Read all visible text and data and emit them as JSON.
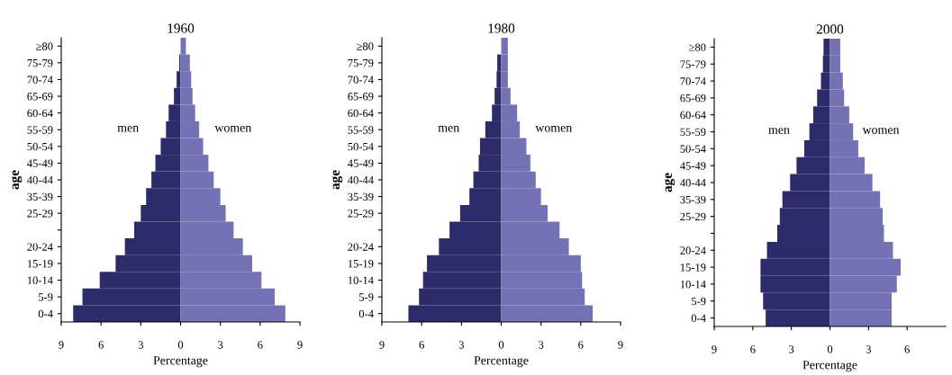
{
  "chart_data": [
    {
      "type": "bar",
      "orientation": "horizontal",
      "stacked": true,
      "title": "1960",
      "xlabel": "Percentage",
      "ylabel": "age",
      "categories": [
        "≥80",
        "75-79",
        "70-74",
        "65-69",
        "60-64",
        "55-59",
        "50-54",
        "45-49",
        "40-44",
        "35-39",
        "25-29",
        null,
        "20-24",
        "15-19",
        "10-14",
        "5-9",
        "0-4"
      ],
      "series": [
        {
          "name": "men",
          "color": "#2e2b6b",
          "values": [
            0.0,
            -0.1,
            -0.3,
            -0.5,
            -0.9,
            -1.1,
            -1.5,
            -1.9,
            -2.2,
            -2.6,
            -3.0,
            -3.5,
            -4.2,
            -4.9,
            -6.1,
            -7.4,
            -8.1
          ]
        },
        {
          "name": "women",
          "color": "#7472b4",
          "values": [
            0.4,
            0.7,
            0.8,
            0.9,
            1.1,
            1.4,
            1.7,
            2.1,
            2.5,
            3.0,
            3.4,
            4.0,
            4.7,
            5.4,
            6.1,
            7.1,
            7.9
          ]
        }
      ],
      "xlim": [
        -9,
        9
      ],
      "xticks": [
        {
          "value": -9,
          "label": "9"
        },
        {
          "value": -6,
          "label": "6"
        },
        {
          "value": -3,
          "label": "3"
        },
        0,
        3,
        6,
        9
      ]
    },
    {
      "type": "bar",
      "orientation": "horizontal",
      "stacked": true,
      "title": "1980",
      "xlabel": "Percentage",
      "ylabel": "age",
      "categories": [
        "≥80",
        "75-79",
        "70-74",
        "65-69",
        "60-64",
        "55-59",
        "50-54",
        "45-49",
        "40-44",
        "35-39",
        "25-29",
        null,
        "20-24",
        "15-19",
        "10-14",
        "5-9",
        "0-4"
      ],
      "series": [
        {
          "name": "men",
          "color": "#2e2b6b",
          "values": [
            0.0,
            -0.3,
            -0.35,
            -0.5,
            -0.7,
            -1.2,
            -1.6,
            -1.7,
            -2.1,
            -2.4,
            -3.1,
            -3.9,
            -4.7,
            -5.6,
            -5.9,
            -6.2,
            -7.0
          ]
        },
        {
          "name": "women",
          "color": "#7472b4",
          "values": [
            0.5,
            0.5,
            0.5,
            0.7,
            1.2,
            1.4,
            1.9,
            2.2,
            2.6,
            3.0,
            3.5,
            4.4,
            5.1,
            6.0,
            6.1,
            6.3,
            6.9
          ]
        }
      ],
      "xlim": [
        -9,
        9
      ],
      "xticks": [
        {
          "value": -9,
          "label": "9"
        },
        {
          "value": -6,
          "label": "6"
        },
        {
          "value": -3,
          "label": "3"
        },
        0,
        3,
        6,
        9
      ]
    },
    {
      "type": "bar",
      "orientation": "horizontal",
      "stacked": true,
      "title": "2000",
      "xlabel": "Percentage",
      "ylabel": "age",
      "categories": [
        "≥80",
        "75-79",
        "70-74",
        "65-69",
        "60-64",
        "55-59",
        "50-54",
        "45-49",
        "40-44",
        "35-39",
        "25-29",
        null,
        "20-24",
        "15-19",
        "10-14",
        "5-9",
        "0-4"
      ],
      "series": [
        {
          "name": "men",
          "color": "#2e2b6b",
          "values": [
            -0.5,
            -0.55,
            -0.7,
            -1.0,
            -1.3,
            -1.6,
            -2.0,
            -2.6,
            -3.1,
            -3.7,
            -3.9,
            -4.1,
            -4.9,
            -5.4,
            -5.4,
            -5.2,
            -5.0
          ]
        },
        {
          "name": "women",
          "color": "#7472b4",
          "values": [
            0.8,
            0.8,
            1.0,
            1.1,
            1.5,
            1.8,
            2.2,
            2.7,
            3.3,
            3.9,
            4.1,
            4.2,
            4.9,
            5.5,
            5.2,
            4.8,
            4.8
          ]
        }
      ],
      "xlim": [
        -9,
        9
      ],
      "xticks": [
        {
          "value": -9,
          "label": "9"
        },
        {
          "value": -6,
          "label": "6"
        },
        {
          "value": -3,
          "label": "3"
        },
        0,
        3,
        6
      ]
    }
  ]
}
